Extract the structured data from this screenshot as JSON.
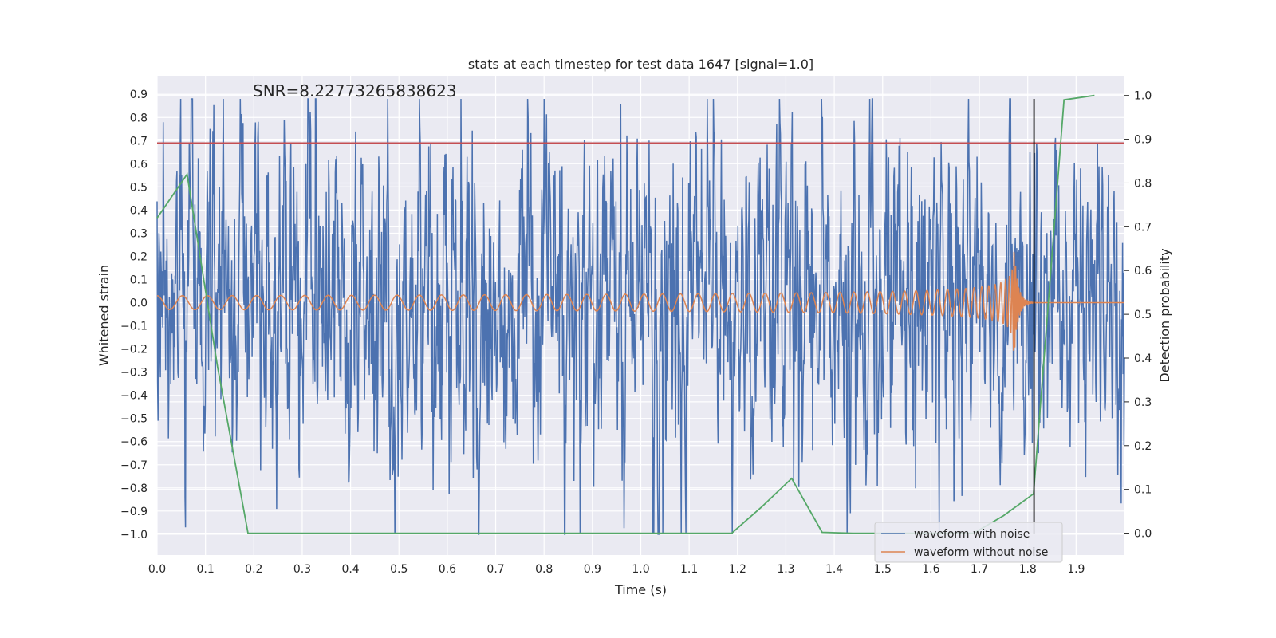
{
  "chart_data": {
    "type": "line",
    "title": "stats at each timestep for test data 1647 [signal=1.0]",
    "annotation": "SNR=8.22773265838623",
    "xlabel": "Time (s)",
    "ylabel": "Whitened strain",
    "y2label": "Detection probability",
    "xlim": [
      0.0,
      2.0
    ],
    "ylim": [
      -1.09,
      0.98
    ],
    "y2lim": [
      -0.05,
      1.045
    ],
    "x_ticks": [
      0.0,
      0.1,
      0.2,
      0.3,
      0.4,
      0.5,
      0.6,
      0.7,
      0.8,
      0.9,
      1.0,
      1.1,
      1.2,
      1.3,
      1.4,
      1.5,
      1.6,
      1.7,
      1.8,
      1.9
    ],
    "x_tick_labels": [
      "0.0",
      "0.1",
      "0.2",
      "0.3",
      "0.4",
      "0.5",
      "0.6",
      "0.7",
      "0.8",
      "0.9",
      "1.0",
      "1.1",
      "1.2",
      "1.3",
      "1.4",
      "1.5",
      "1.6",
      "1.7",
      "1.8",
      "1.9"
    ],
    "y_ticks": [
      -1.0,
      -0.9,
      -0.8,
      -0.7,
      -0.6,
      -0.5,
      -0.4,
      -0.3,
      -0.2,
      -0.1,
      0.0,
      0.1,
      0.2,
      0.3,
      0.4,
      0.5,
      0.6,
      0.7,
      0.8,
      0.9
    ],
    "y_tick_labels": [
      "−1.0",
      "−0.9",
      "−0.8",
      "−0.7",
      "−0.6",
      "−0.5",
      "−0.4",
      "−0.3",
      "−0.2",
      "−0.1",
      "0.0",
      "0.1",
      "0.2",
      "0.3",
      "0.4",
      "0.5",
      "0.6",
      "0.7",
      "0.8",
      "0.9"
    ],
    "y2_ticks": [
      0.0,
      0.1,
      0.2,
      0.3,
      0.4,
      0.5,
      0.6,
      0.7,
      0.8,
      0.9,
      1.0
    ],
    "y2_tick_labels": [
      "0.0",
      "0.1",
      "0.2",
      "0.3",
      "0.4",
      "0.5",
      "0.6",
      "0.7",
      "0.8",
      "0.9",
      "1.0"
    ],
    "grid": true,
    "legend_position": "lower-right",
    "series": [
      {
        "name": "waveform with noise",
        "axis": "left",
        "color": "#4c72b0",
        "kind": "noise",
        "x_range": [
          0.0,
          2.0
        ],
        "approx_amplitude_range": [
          -1.0,
          0.88
        ]
      },
      {
        "name": "waveform without noise",
        "axis": "left",
        "color": "#dd8452",
        "kind": "chirp",
        "x_range": [
          0.0,
          2.0
        ],
        "merger_time": 1.77,
        "amplitude_start": 0.03,
        "amplitude_peak": 0.3
      },
      {
        "axis": "right",
        "color": "#55a868",
        "x": [
          0.0,
          0.062,
          0.125,
          0.188,
          0.25,
          0.312,
          0.375,
          0.438,
          0.5,
          0.562,
          0.625,
          0.688,
          0.75,
          0.812,
          0.875,
          0.938,
          1.0,
          1.062,
          1.125,
          1.188,
          1.25,
          1.312,
          1.375,
          1.438,
          1.5,
          1.562,
          1.625,
          1.688,
          1.75,
          1.812,
          1.875,
          1.938
        ],
        "values": [
          0.72,
          0.82,
          0.38,
          0.0,
          0.0,
          0.0,
          0.0,
          0.0,
          0.0,
          0.0,
          0.0,
          0.0,
          0.0,
          0.0,
          0.0,
          0.0,
          0.0,
          0.0,
          0.0,
          0.0,
          0.06,
          0.125,
          0.002,
          0.0,
          0.0,
          0.0,
          0.0,
          0.0,
          0.04,
          0.09,
          0.99,
          1.0
        ]
      }
    ],
    "hlines": [
      {
        "y": 0.69,
        "axis": "left",
        "color": "#c44e52"
      }
    ],
    "vlines": [
      {
        "x": 1.813,
        "color": "#000000",
        "y_range": [
          -1.0,
          0.88
        ]
      }
    ]
  }
}
